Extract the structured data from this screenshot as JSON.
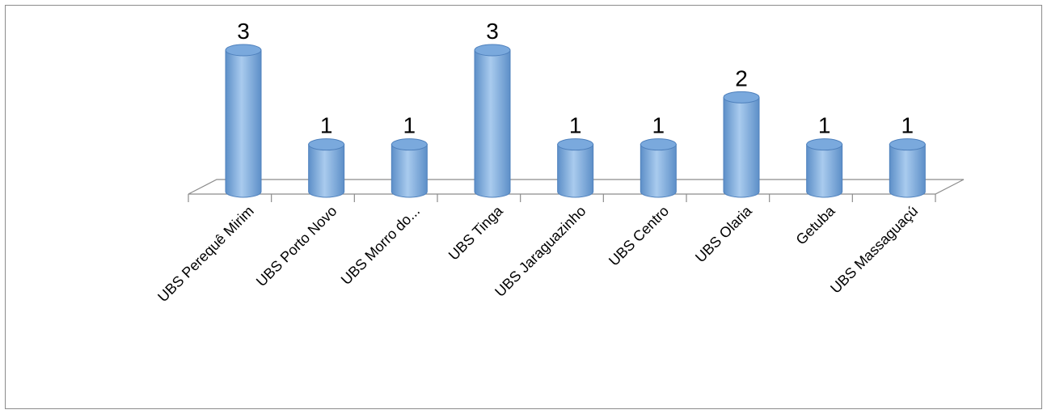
{
  "chart_data": {
    "type": "bar",
    "style": "3d-cylinder",
    "categories": [
      "UBS Perequê Mirim",
      "UBS Porto Novo",
      "UBS Morro do...",
      "UBS Tinga",
      "UBS Jaraguazinho",
      "UBS Centro",
      "UBS Olaria",
      "Getuba",
      "UBS Massaguaçú"
    ],
    "values": [
      3,
      1,
      1,
      3,
      1,
      1,
      2,
      1,
      1
    ],
    "data_labels": [
      "3",
      "1",
      "1",
      "3",
      "1",
      "1",
      "2",
      "1",
      "1"
    ],
    "ylim": [
      0,
      3
    ],
    "grid": false,
    "legend": "none",
    "colors": {
      "bar_fill": "#a9cbee",
      "bar_dark": "#5d8fc8",
      "bar_stroke": "#4f81bd",
      "bar_top": "#7aa9dd",
      "floor_stroke": "#8c8c8c"
    }
  }
}
